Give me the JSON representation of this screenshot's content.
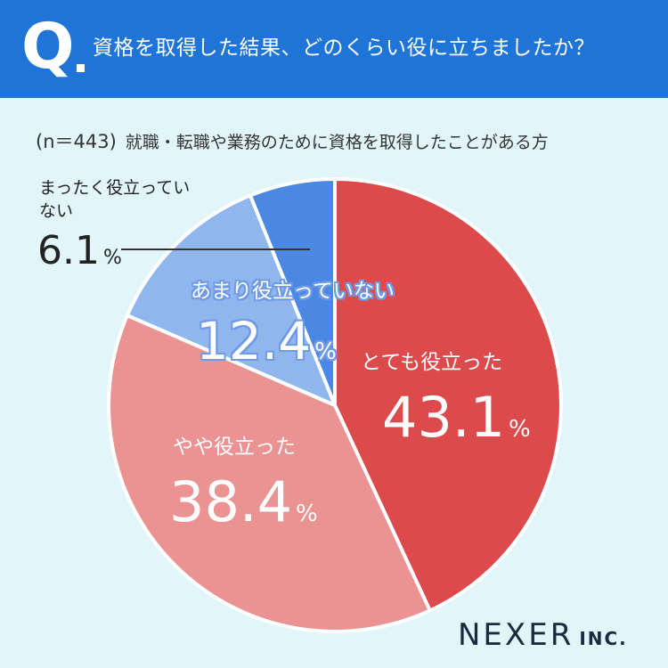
{
  "header": {
    "q_letter": "Q",
    "question": "資格を取得した結果、どのくらい役に立ちましたか？"
  },
  "subtitle": {
    "sample": "(n＝443)",
    "text": "就職・転職や業務のために資格を取得したことがある方"
  },
  "chart_data": {
    "type": "pie",
    "start_angle_deg": 0,
    "direction": "clockwise",
    "unit": "%",
    "slices": [
      {
        "label": "とても役立った",
        "value": 43.1,
        "color": "#dc4a4c"
      },
      {
        "label": "やや役立った",
        "value": 38.4,
        "color": "#eb9292"
      },
      {
        "label": "あまり役立っていない",
        "value": 12.4,
        "color": "#90b6ee"
      },
      {
        "label": "まったく役立っていない",
        "value": 6.1,
        "color": "#4b88e4"
      }
    ],
    "separator_color": "#ffffff"
  },
  "labels": [
    {
      "name": "とても役立った",
      "value": "43.1",
      "unit": "%"
    },
    {
      "name": "やや役立った",
      "value": "38.4",
      "unit": "%"
    },
    {
      "name": "あまり役立っていない",
      "value": "12.4",
      "unit": "%"
    },
    {
      "name": "まったく役立っていない",
      "value": "6.1",
      "unit": "%"
    }
  ],
  "logo": {
    "main": "NEXER",
    "suffix": "INC."
  }
}
